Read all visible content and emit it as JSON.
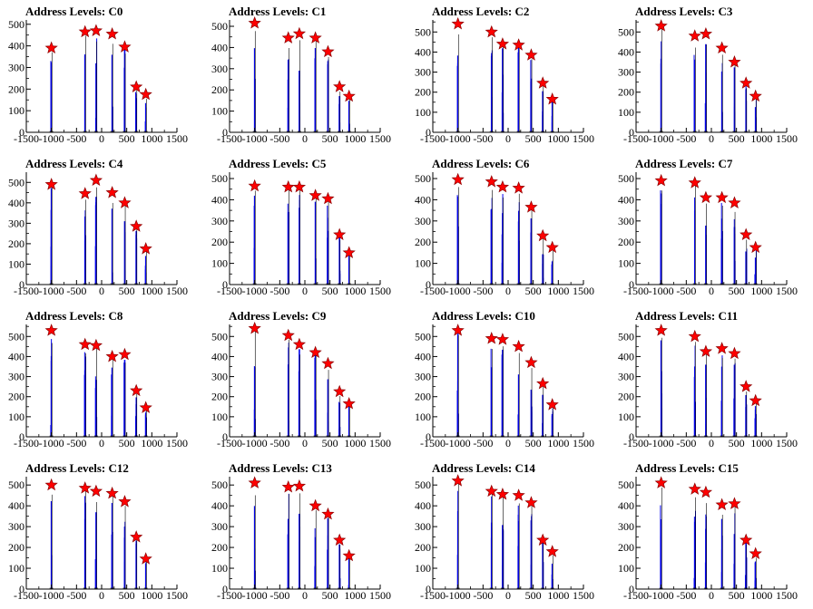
{
  "figure": {
    "title_prefix": "Address Levels: "
  },
  "colors": {
    "histogram": "#0000ee",
    "marker": "#ff0000",
    "marker_stroke": "#8a0000",
    "axis": "#000000",
    "dark_line": "#000000"
  },
  "chart_data": [
    {
      "type": "bar",
      "title": "Address Levels: C0",
      "xlim": [
        -1500,
        1500
      ],
      "ylim": [
        0,
        520
      ],
      "xticks": [
        "-1500",
        "-1000",
        "-500",
        "0",
        "500",
        "1000",
        "1500"
      ],
      "yticks": [
        "0",
        "100",
        "200",
        "300",
        "400",
        "500"
      ],
      "peaks": [
        {
          "x": -1000,
          "y": 390
        },
        {
          "x": -330,
          "y": 465
        },
        {
          "x": -110,
          "y": 470
        },
        {
          "x": 210,
          "y": 455
        },
        {
          "x": 460,
          "y": 395
        },
        {
          "x": 690,
          "y": 210
        },
        {
          "x": 880,
          "y": 175
        }
      ]
    },
    {
      "type": "bar",
      "title": "Address Levels: C1",
      "xlim": [
        -1500,
        1500
      ],
      "ylim": [
        0,
        530
      ],
      "xticks": [
        "-1500",
        "-1000",
        "-500",
        "0",
        "500",
        "1000",
        "1500"
      ],
      "yticks": [
        "0",
        "100",
        "200",
        "300",
        "400",
        "500"
      ],
      "peaks": [
        {
          "x": -1000,
          "y": 515
        },
        {
          "x": -330,
          "y": 445
        },
        {
          "x": -110,
          "y": 465
        },
        {
          "x": 210,
          "y": 445
        },
        {
          "x": 460,
          "y": 380
        },
        {
          "x": 690,
          "y": 215
        },
        {
          "x": 880,
          "y": 170
        }
      ]
    },
    {
      "type": "bar",
      "title": "Address Levels: C2",
      "xlim": [
        -1500,
        1500
      ],
      "ylim": [
        0,
        560
      ],
      "xticks": [
        "-1500",
        "-1000",
        "-500",
        "0",
        "500",
        "1000",
        "1500"
      ],
      "yticks": [
        "0",
        "100",
        "200",
        "300",
        "400",
        "500"
      ],
      "peaks": [
        {
          "x": -1000,
          "y": 540
        },
        {
          "x": -330,
          "y": 500
        },
        {
          "x": -110,
          "y": 440
        },
        {
          "x": 210,
          "y": 435
        },
        {
          "x": 460,
          "y": 385
        },
        {
          "x": 690,
          "y": 245
        },
        {
          "x": 880,
          "y": 165
        }
      ]
    },
    {
      "type": "bar",
      "title": "Address Levels: C3",
      "xlim": [
        -1500,
        1500
      ],
      "ylim": [
        0,
        560
      ],
      "xticks": [
        "-1500",
        "-1000",
        "-500",
        "0",
        "500",
        "1000",
        "1500"
      ],
      "yticks": [
        "0",
        "100",
        "200",
        "300",
        "400",
        "500"
      ],
      "peaks": [
        {
          "x": -1000,
          "y": 530
        },
        {
          "x": -330,
          "y": 480
        },
        {
          "x": -110,
          "y": 490
        },
        {
          "x": 210,
          "y": 420
        },
        {
          "x": 460,
          "y": 350
        },
        {
          "x": 690,
          "y": 245
        },
        {
          "x": 880,
          "y": 180
        }
      ]
    },
    {
      "type": "bar",
      "title": "Address Levels: C4",
      "xlim": [
        -1500,
        1500
      ],
      "ylim": [
        0,
        550
      ],
      "xticks": [
        "-1500",
        "-1000",
        "-500",
        "0",
        "500",
        "1000",
        "1500"
      ],
      "yticks": [
        "0",
        "100",
        "200",
        "300",
        "400",
        "500"
      ],
      "peaks": [
        {
          "x": -1000,
          "y": 490
        },
        {
          "x": -330,
          "y": 445
        },
        {
          "x": -110,
          "y": 510
        },
        {
          "x": 210,
          "y": 450
        },
        {
          "x": 460,
          "y": 400
        },
        {
          "x": 690,
          "y": 285
        },
        {
          "x": 880,
          "y": 175
        }
      ]
    },
    {
      "type": "bar",
      "title": "Address Levels: C5",
      "xlim": [
        -1500,
        1500
      ],
      "ylim": [
        0,
        530
      ],
      "xticks": [
        "-1500",
        "-1000",
        "-500",
        "0",
        "500",
        "1000",
        "1500"
      ],
      "yticks": [
        "0",
        "100",
        "200",
        "300",
        "400",
        "500"
      ],
      "peaks": [
        {
          "x": -1000,
          "y": 465
        },
        {
          "x": -330,
          "y": 460
        },
        {
          "x": -110,
          "y": 460
        },
        {
          "x": 210,
          "y": 420
        },
        {
          "x": 460,
          "y": 405
        },
        {
          "x": 690,
          "y": 235
        },
        {
          "x": 880,
          "y": 150
        }
      ]
    },
    {
      "type": "bar",
      "title": "Address Levels: C6",
      "xlim": [
        -1500,
        1500
      ],
      "ylim": [
        0,
        530
      ],
      "xticks": [
        "-1500",
        "-1000",
        "-500",
        "0",
        "500",
        "1000",
        "1500"
      ],
      "yticks": [
        "0",
        "100",
        "200",
        "300",
        "400",
        "500"
      ],
      "peaks": [
        {
          "x": -1000,
          "y": 495
        },
        {
          "x": -330,
          "y": 485
        },
        {
          "x": -110,
          "y": 460
        },
        {
          "x": 210,
          "y": 455
        },
        {
          "x": 460,
          "y": 365
        },
        {
          "x": 690,
          "y": 230
        },
        {
          "x": 880,
          "y": 175
        }
      ]
    },
    {
      "type": "bar",
      "title": "Address Levels: C7",
      "xlim": [
        -1500,
        1500
      ],
      "ylim": [
        0,
        530
      ],
      "xticks": [
        "-1500",
        "-1000",
        "-500",
        "0",
        "500",
        "1000",
        "1500"
      ],
      "yticks": [
        "0",
        "100",
        "200",
        "300",
        "400",
        "500"
      ],
      "peaks": [
        {
          "x": -1000,
          "y": 490
        },
        {
          "x": -330,
          "y": 480
        },
        {
          "x": -110,
          "y": 410
        },
        {
          "x": 210,
          "y": 410
        },
        {
          "x": 460,
          "y": 385
        },
        {
          "x": 690,
          "y": 235
        },
        {
          "x": 880,
          "y": 175
        }
      ]
    },
    {
      "type": "bar",
      "title": "Address Levels: C8",
      "xlim": [
        -1500,
        1500
      ],
      "ylim": [
        0,
        560
      ],
      "xticks": [
        "-1500",
        "-1000",
        "-500",
        "0",
        "500",
        "1000",
        "1500"
      ],
      "yticks": [
        "0",
        "100",
        "200",
        "300",
        "400",
        "500"
      ],
      "peaks": [
        {
          "x": -1000,
          "y": 530
        },
        {
          "x": -330,
          "y": 460
        },
        {
          "x": -110,
          "y": 455
        },
        {
          "x": 210,
          "y": 400
        },
        {
          "x": 460,
          "y": 410
        },
        {
          "x": 690,
          "y": 230
        },
        {
          "x": 880,
          "y": 145
        }
      ]
    },
    {
      "type": "bar",
      "title": "Address Levels: C9",
      "xlim": [
        -1500,
        1500
      ],
      "ylim": [
        0,
        560
      ],
      "xticks": [
        "-1500",
        "-1000",
        "-500",
        "0",
        "500",
        "1000",
        "1500"
      ],
      "yticks": [
        "0",
        "100",
        "200",
        "300",
        "400",
        "500"
      ],
      "peaks": [
        {
          "x": -1000,
          "y": 540
        },
        {
          "x": -330,
          "y": 505
        },
        {
          "x": -110,
          "y": 460
        },
        {
          "x": 210,
          "y": 420
        },
        {
          "x": 460,
          "y": 365
        },
        {
          "x": 690,
          "y": 225
        },
        {
          "x": 880,
          "y": 165
        }
      ]
    },
    {
      "type": "bar",
      "title": "Address Levels: C10",
      "xlim": [
        -1500,
        1500
      ],
      "ylim": [
        0,
        560
      ],
      "xticks": [
        "-1500",
        "-1000",
        "-500",
        "0",
        "500",
        "1000",
        "1500"
      ],
      "yticks": [
        "0",
        "100",
        "200",
        "300",
        "400",
        "500"
      ],
      "peaks": [
        {
          "x": -1000,
          "y": 530
        },
        {
          "x": -330,
          "y": 490
        },
        {
          "x": -110,
          "y": 485
        },
        {
          "x": 210,
          "y": 450
        },
        {
          "x": 460,
          "y": 370
        },
        {
          "x": 690,
          "y": 265
        },
        {
          "x": 880,
          "y": 160
        }
      ]
    },
    {
      "type": "bar",
      "title": "Address Levels: C11",
      "xlim": [
        -1500,
        1500
      ],
      "ylim": [
        0,
        560
      ],
      "xticks": [
        "-1500",
        "-1000",
        "-500",
        "0",
        "500",
        "1000",
        "1500"
      ],
      "yticks": [
        "0",
        "100",
        "200",
        "300",
        "400",
        "500"
      ],
      "peaks": [
        {
          "x": -1000,
          "y": 530
        },
        {
          "x": -330,
          "y": 500
        },
        {
          "x": -110,
          "y": 425
        },
        {
          "x": 210,
          "y": 440
        },
        {
          "x": 460,
          "y": 415
        },
        {
          "x": 690,
          "y": 250
        },
        {
          "x": 880,
          "y": 180
        }
      ]
    },
    {
      "type": "bar",
      "title": "Address Levels: C12",
      "xlim": [
        -1500,
        1500
      ],
      "ylim": [
        0,
        540
      ],
      "xticks": [
        "-1500",
        "-1000",
        "-500",
        "0",
        "500",
        "1000",
        "1500"
      ],
      "yticks": [
        "0",
        "100",
        "200",
        "300",
        "400",
        "500"
      ],
      "peaks": [
        {
          "x": -1000,
          "y": 500
        },
        {
          "x": -330,
          "y": 485
        },
        {
          "x": -110,
          "y": 470
        },
        {
          "x": 210,
          "y": 460
        },
        {
          "x": 460,
          "y": 420
        },
        {
          "x": 690,
          "y": 250
        },
        {
          "x": 880,
          "y": 145
        }
      ]
    },
    {
      "type": "bar",
      "title": "Address Levels: C13",
      "xlim": [
        -1500,
        1500
      ],
      "ylim": [
        0,
        540
      ],
      "xticks": [
        "-1500",
        "-1000",
        "-500",
        "0",
        "500",
        "1000",
        "1500"
      ],
      "yticks": [
        "0",
        "100",
        "200",
        "300",
        "400",
        "500"
      ],
      "peaks": [
        {
          "x": -1000,
          "y": 510
        },
        {
          "x": -330,
          "y": 490
        },
        {
          "x": -110,
          "y": 495
        },
        {
          "x": 210,
          "y": 400
        },
        {
          "x": 460,
          "y": 360
        },
        {
          "x": 690,
          "y": 235
        },
        {
          "x": 880,
          "y": 160
        }
      ]
    },
    {
      "type": "bar",
      "title": "Address Levels: C14",
      "xlim": [
        -1500,
        1500
      ],
      "ylim": [
        0,
        540
      ],
      "xticks": [
        "-1500",
        "-1000",
        "-500",
        "0",
        "500",
        "1000",
        "1500"
      ],
      "yticks": [
        "0",
        "100",
        "200",
        "300",
        "400",
        "500"
      ],
      "peaks": [
        {
          "x": -1000,
          "y": 520
        },
        {
          "x": -330,
          "y": 470
        },
        {
          "x": -110,
          "y": 455
        },
        {
          "x": 210,
          "y": 450
        },
        {
          "x": 460,
          "y": 415
        },
        {
          "x": 690,
          "y": 235
        },
        {
          "x": 880,
          "y": 180
        }
      ]
    },
    {
      "type": "bar",
      "title": "Address Levels: C15",
      "xlim": [
        -1500,
        1500
      ],
      "ylim": [
        0,
        540
      ],
      "xticks": [
        "-1500",
        "-1000",
        "-500",
        "0",
        "500",
        "1000",
        "1500"
      ],
      "yticks": [
        "0",
        "100",
        "200",
        "300",
        "400",
        "500"
      ],
      "peaks": [
        {
          "x": -1000,
          "y": 510
        },
        {
          "x": -330,
          "y": 480
        },
        {
          "x": -110,
          "y": 465
        },
        {
          "x": 210,
          "y": 405
        },
        {
          "x": 460,
          "y": 410
        },
        {
          "x": 690,
          "y": 235
        },
        {
          "x": 880,
          "y": 170
        }
      ]
    }
  ]
}
